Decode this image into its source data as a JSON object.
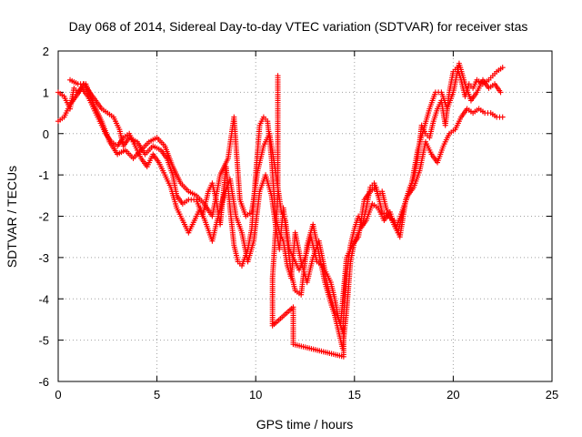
{
  "chart_data": {
    "type": "scatter",
    "title": "Day 068 of 2014, Sidereal Day-to-day VTEC variation (SDTVAR) for receiver stas",
    "xlabel": "GPS time / hours",
    "ylabel": "SDTVAR / TECUs",
    "xlim": [
      0,
      25
    ],
    "ylim": [
      -6,
      2
    ],
    "xticks": [
      "0",
      "5",
      "10",
      "15",
      "20",
      "25"
    ],
    "yticks": [
      "-6",
      "-5",
      "-4",
      "-3",
      "-2",
      "-1",
      "0",
      "1",
      "2"
    ],
    "grid": true,
    "legend": "none",
    "marker": "plus",
    "color": "#ff0000",
    "series": [
      {
        "values": [
          [
            0.0,
            1.0
          ],
          [
            0.3,
            0.9
          ],
          [
            0.6,
            0.6
          ],
          [
            0.8,
            1.1
          ],
          [
            1.0,
            1.0
          ],
          [
            1.3,
            1.2
          ],
          [
            1.6,
            1.0
          ],
          [
            1.9,
            0.8
          ],
          [
            2.2,
            0.6
          ],
          [
            2.5,
            0.5
          ],
          [
            2.8,
            0.4
          ],
          [
            3.1,
            0.1
          ],
          [
            3.3,
            -0.3
          ],
          [
            3.6,
            -0.1
          ],
          [
            4.0,
            -0.2
          ],
          [
            4.4,
            -0.5
          ],
          [
            4.8,
            -0.3
          ],
          [
            5.2,
            -0.4
          ],
          [
            5.5,
            -0.6
          ],
          [
            5.8,
            -1.0
          ],
          [
            6.0,
            -1.5
          ],
          [
            6.3,
            -1.7
          ],
          [
            6.6,
            -1.6
          ],
          [
            7.0,
            -1.6
          ],
          [
            7.3,
            -2.0
          ],
          [
            7.6,
            -1.4
          ],
          [
            7.8,
            -1.2
          ],
          [
            8.0,
            -1.6
          ],
          [
            8.2,
            -2.2
          ],
          [
            8.5,
            -0.8
          ],
          [
            8.7,
            -1.8
          ],
          [
            8.9,
            -2.7
          ],
          [
            9.1,
            -3.1
          ],
          [
            9.3,
            -3.2
          ],
          [
            9.6,
            -2.8
          ],
          [
            9.8,
            -2.3
          ],
          [
            10.0,
            -1.0
          ],
          [
            10.2,
            0.2
          ],
          [
            10.4,
            0.4
          ],
          [
            10.6,
            0.3
          ],
          [
            10.8,
            -0.6
          ],
          [
            11.0,
            -2.0
          ],
          [
            11.2,
            -2.4
          ],
          [
            11.4,
            -2.6
          ],
          [
            11.6,
            -3.2
          ],
          [
            11.8,
            -3.5
          ],
          [
            12.0,
            -2.4
          ],
          [
            12.3,
            -3.1
          ],
          [
            12.6,
            -3.6
          ],
          [
            12.9,
            -3.0
          ],
          [
            13.2,
            -2.6
          ],
          [
            13.5,
            -3.3
          ],
          [
            13.8,
            -3.6
          ],
          [
            14.0,
            -4.0
          ],
          [
            14.2,
            -4.5
          ],
          [
            14.4,
            -4.8
          ],
          [
            14.6,
            -3.4
          ],
          [
            14.8,
            -2.7
          ],
          [
            15.0,
            -2.3
          ],
          [
            15.2,
            -2.0
          ],
          [
            15.4,
            -2.2
          ],
          [
            15.6,
            -1.8
          ],
          [
            15.8,
            -1.3
          ],
          [
            16.0,
            -1.2
          ],
          [
            16.2,
            -1.5
          ],
          [
            16.4,
            -1.4
          ],
          [
            16.6,
            -1.8
          ],
          [
            16.8,
            -2.0
          ],
          [
            17.0,
            -2.2
          ],
          [
            17.2,
            -2.4
          ],
          [
            17.5,
            -1.8
          ],
          [
            17.8,
            -1.3
          ],
          [
            18.0,
            -1.1
          ],
          [
            18.2,
            -0.6
          ],
          [
            18.4,
            0.2
          ],
          [
            18.6,
            0.0
          ],
          [
            18.8,
            -0.1
          ],
          [
            19.0,
            0.3
          ],
          [
            19.2,
            0.6
          ],
          [
            19.4,
            0.8
          ],
          [
            19.6,
            0.2
          ],
          [
            19.8,
            1.0
          ],
          [
            20.0,
            1.5
          ],
          [
            20.2,
            1.6
          ],
          [
            20.4,
            1.3
          ],
          [
            20.6,
            0.9
          ],
          [
            20.8,
            1.2
          ],
          [
            21.0,
            1.1
          ],
          [
            21.2,
            1.3
          ],
          [
            21.5,
            1.2
          ],
          [
            21.8,
            1.3
          ],
          [
            22.0,
            1.4
          ],
          [
            22.2,
            1.5
          ],
          [
            22.5,
            1.6
          ]
        ]
      },
      {
        "values": [
          [
            0.0,
            0.3
          ],
          [
            0.3,
            0.4
          ],
          [
            0.6,
            0.7
          ],
          [
            0.9,
            0.9
          ],
          [
            1.2,
            1.1
          ],
          [
            1.5,
            0.9
          ],
          [
            1.8,
            0.6
          ],
          [
            2.1,
            0.3
          ],
          [
            2.4,
            0.0
          ],
          [
            2.7,
            -0.2
          ],
          [
            3.0,
            -0.3
          ],
          [
            3.3,
            -0.1
          ],
          [
            3.6,
            0.0
          ],
          [
            3.9,
            -0.3
          ],
          [
            4.2,
            -0.6
          ],
          [
            4.5,
            -0.8
          ],
          [
            4.8,
            -0.5
          ],
          [
            5.1,
            -0.7
          ],
          [
            5.4,
            -1.0
          ],
          [
            5.7,
            -1.3
          ],
          [
            6.0,
            -1.8
          ],
          [
            6.3,
            -2.1
          ],
          [
            6.6,
            -2.4
          ],
          [
            6.9,
            -2.1
          ],
          [
            7.2,
            -1.8
          ],
          [
            7.5,
            -2.2
          ],
          [
            7.8,
            -2.6
          ],
          [
            8.1,
            -2.0
          ],
          [
            8.4,
            -1.5
          ],
          [
            8.7,
            -1.1
          ],
          [
            9.0,
            -2.0
          ],
          [
            9.3,
            -2.4
          ],
          [
            9.6,
            -3.1
          ],
          [
            9.9,
            -2.6
          ],
          [
            10.2,
            -1.4
          ],
          [
            10.5,
            -1.0
          ],
          [
            10.8,
            -1.5
          ],
          [
            11.0,
            -2.2
          ],
          [
            11.2,
            -2.8
          ],
          [
            11.4,
            -1.8
          ],
          [
            11.6,
            -2.6
          ],
          [
            11.8,
            -3.4
          ],
          [
            12.0,
            -3.8
          ],
          [
            12.3,
            -3.9
          ],
          [
            12.6,
            -2.7
          ],
          [
            12.9,
            -2.2
          ],
          [
            13.2,
            -2.9
          ],
          [
            13.5,
            -3.6
          ],
          [
            13.8,
            -4.1
          ],
          [
            14.0,
            -4.4
          ],
          [
            14.2,
            -4.8
          ],
          [
            14.4,
            -5.2
          ],
          [
            14.6,
            -4.3
          ],
          [
            14.8,
            -3.1
          ],
          [
            15.0,
            -2.6
          ],
          [
            15.3,
            -2.3
          ],
          [
            15.6,
            -2.1
          ],
          [
            15.9,
            -1.7
          ],
          [
            16.2,
            -1.8
          ],
          [
            16.5,
            -2.1
          ],
          [
            16.8,
            -1.9
          ],
          [
            17.1,
            -2.3
          ],
          [
            17.4,
            -1.9
          ],
          [
            17.7,
            -1.5
          ],
          [
            18.0,
            -1.3
          ],
          [
            18.3,
            -0.9
          ],
          [
            18.6,
            -0.2
          ],
          [
            18.9,
            -0.5
          ],
          [
            19.2,
            -0.7
          ],
          [
            19.5,
            -0.3
          ],
          [
            19.8,
            0.0
          ],
          [
            20.1,
            0.1
          ],
          [
            20.4,
            0.4
          ],
          [
            20.7,
            0.6
          ],
          [
            21.0,
            0.5
          ],
          [
            21.3,
            0.6
          ],
          [
            21.6,
            0.5
          ],
          [
            21.9,
            0.5
          ],
          [
            22.2,
            0.4
          ],
          [
            22.5,
            0.4
          ]
        ]
      },
      {
        "values": [
          [
            0.6,
            1.3
          ],
          [
            1.0,
            1.2
          ],
          [
            1.4,
            1.2
          ],
          [
            1.8,
            0.7
          ],
          [
            2.2,
            0.3
          ],
          [
            2.6,
            -0.2
          ],
          [
            3.0,
            -0.5
          ],
          [
            3.4,
            -0.4
          ],
          [
            3.8,
            -0.6
          ],
          [
            4.2,
            -0.4
          ],
          [
            4.6,
            -0.2
          ],
          [
            5.0,
            -0.1
          ],
          [
            5.4,
            -0.3
          ],
          [
            5.8,
            -0.8
          ],
          [
            6.2,
            -1.2
          ],
          [
            6.6,
            -1.4
          ],
          [
            7.0,
            -1.5
          ],
          [
            7.4,
            -1.7
          ],
          [
            7.8,
            -2.0
          ],
          [
            8.2,
            -1.0
          ],
          [
            8.6,
            -0.6
          ],
          [
            8.9,
            0.4
          ],
          [
            9.2,
            -1.6
          ],
          [
            9.5,
            -2.0
          ],
          [
            9.8,
            -1.9
          ],
          [
            10.1,
            -0.9
          ],
          [
            10.4,
            -0.3
          ],
          [
            10.7,
            0.0
          ],
          [
            11.0,
            -0.9
          ],
          [
            11.3,
            -1.9
          ],
          [
            11.5,
            -2.1
          ],
          [
            11.7,
            -2.8
          ],
          [
            11.9,
            -3.0
          ],
          [
            12.2,
            -3.3
          ],
          [
            12.5,
            -3.0
          ],
          [
            12.8,
            -2.5
          ],
          [
            13.1,
            -3.1
          ],
          [
            13.4,
            -3.2
          ],
          [
            13.7,
            -3.8
          ],
          [
            14.0,
            -4.3
          ],
          [
            14.3,
            -4.6
          ],
          [
            14.6,
            -3.0
          ],
          [
            14.9,
            -2.7
          ],
          [
            15.2,
            -2.5
          ],
          [
            15.5,
            -1.6
          ],
          [
            15.8,
            -1.4
          ],
          [
            16.1,
            -1.3
          ],
          [
            16.4,
            -1.9
          ],
          [
            16.7,
            -2.0
          ],
          [
            17.0,
            -2.1
          ],
          [
            17.3,
            -2.5
          ],
          [
            17.6,
            -1.6
          ],
          [
            17.9,
            -1.2
          ],
          [
            18.2,
            -0.4
          ],
          [
            18.5,
            0.1
          ],
          [
            18.8,
            0.6
          ],
          [
            19.1,
            1.0
          ],
          [
            19.4,
            1.0
          ],
          [
            19.7,
            0.6
          ],
          [
            20.0,
            1.0
          ],
          [
            20.3,
            1.7
          ],
          [
            20.6,
            1.2
          ],
          [
            20.9,
            0.8
          ],
          [
            21.2,
            1.0
          ],
          [
            21.5,
            1.3
          ],
          [
            21.8,
            1.1
          ],
          [
            22.1,
            1.2
          ],
          [
            22.4,
            1.0
          ]
        ]
      },
      {
        "values": [
          [
            11.12,
            1.4
          ],
          [
            11.12,
            1.2
          ],
          [
            11.12,
            0.9
          ],
          [
            11.12,
            0.6
          ],
          [
            11.12,
            0.3
          ],
          [
            11.12,
            0.0
          ],
          [
            11.12,
            -0.3
          ],
          [
            11.12,
            -0.6
          ],
          [
            11.12,
            -0.9
          ],
          [
            11.12,
            -1.2
          ],
          [
            11.12,
            -1.5
          ],
          [
            10.85,
            -3.5
          ],
          [
            10.85,
            -3.9
          ],
          [
            10.85,
            -4.3
          ],
          [
            10.85,
            -4.65
          ],
          [
            11.9,
            -4.2
          ],
          [
            11.9,
            -4.5
          ],
          [
            11.9,
            -4.8
          ],
          [
            11.9,
            -5.1
          ],
          [
            14.45,
            -5.4
          ],
          [
            14.45,
            -5.1
          ],
          [
            14.45,
            -4.7
          ]
        ]
      }
    ]
  }
}
